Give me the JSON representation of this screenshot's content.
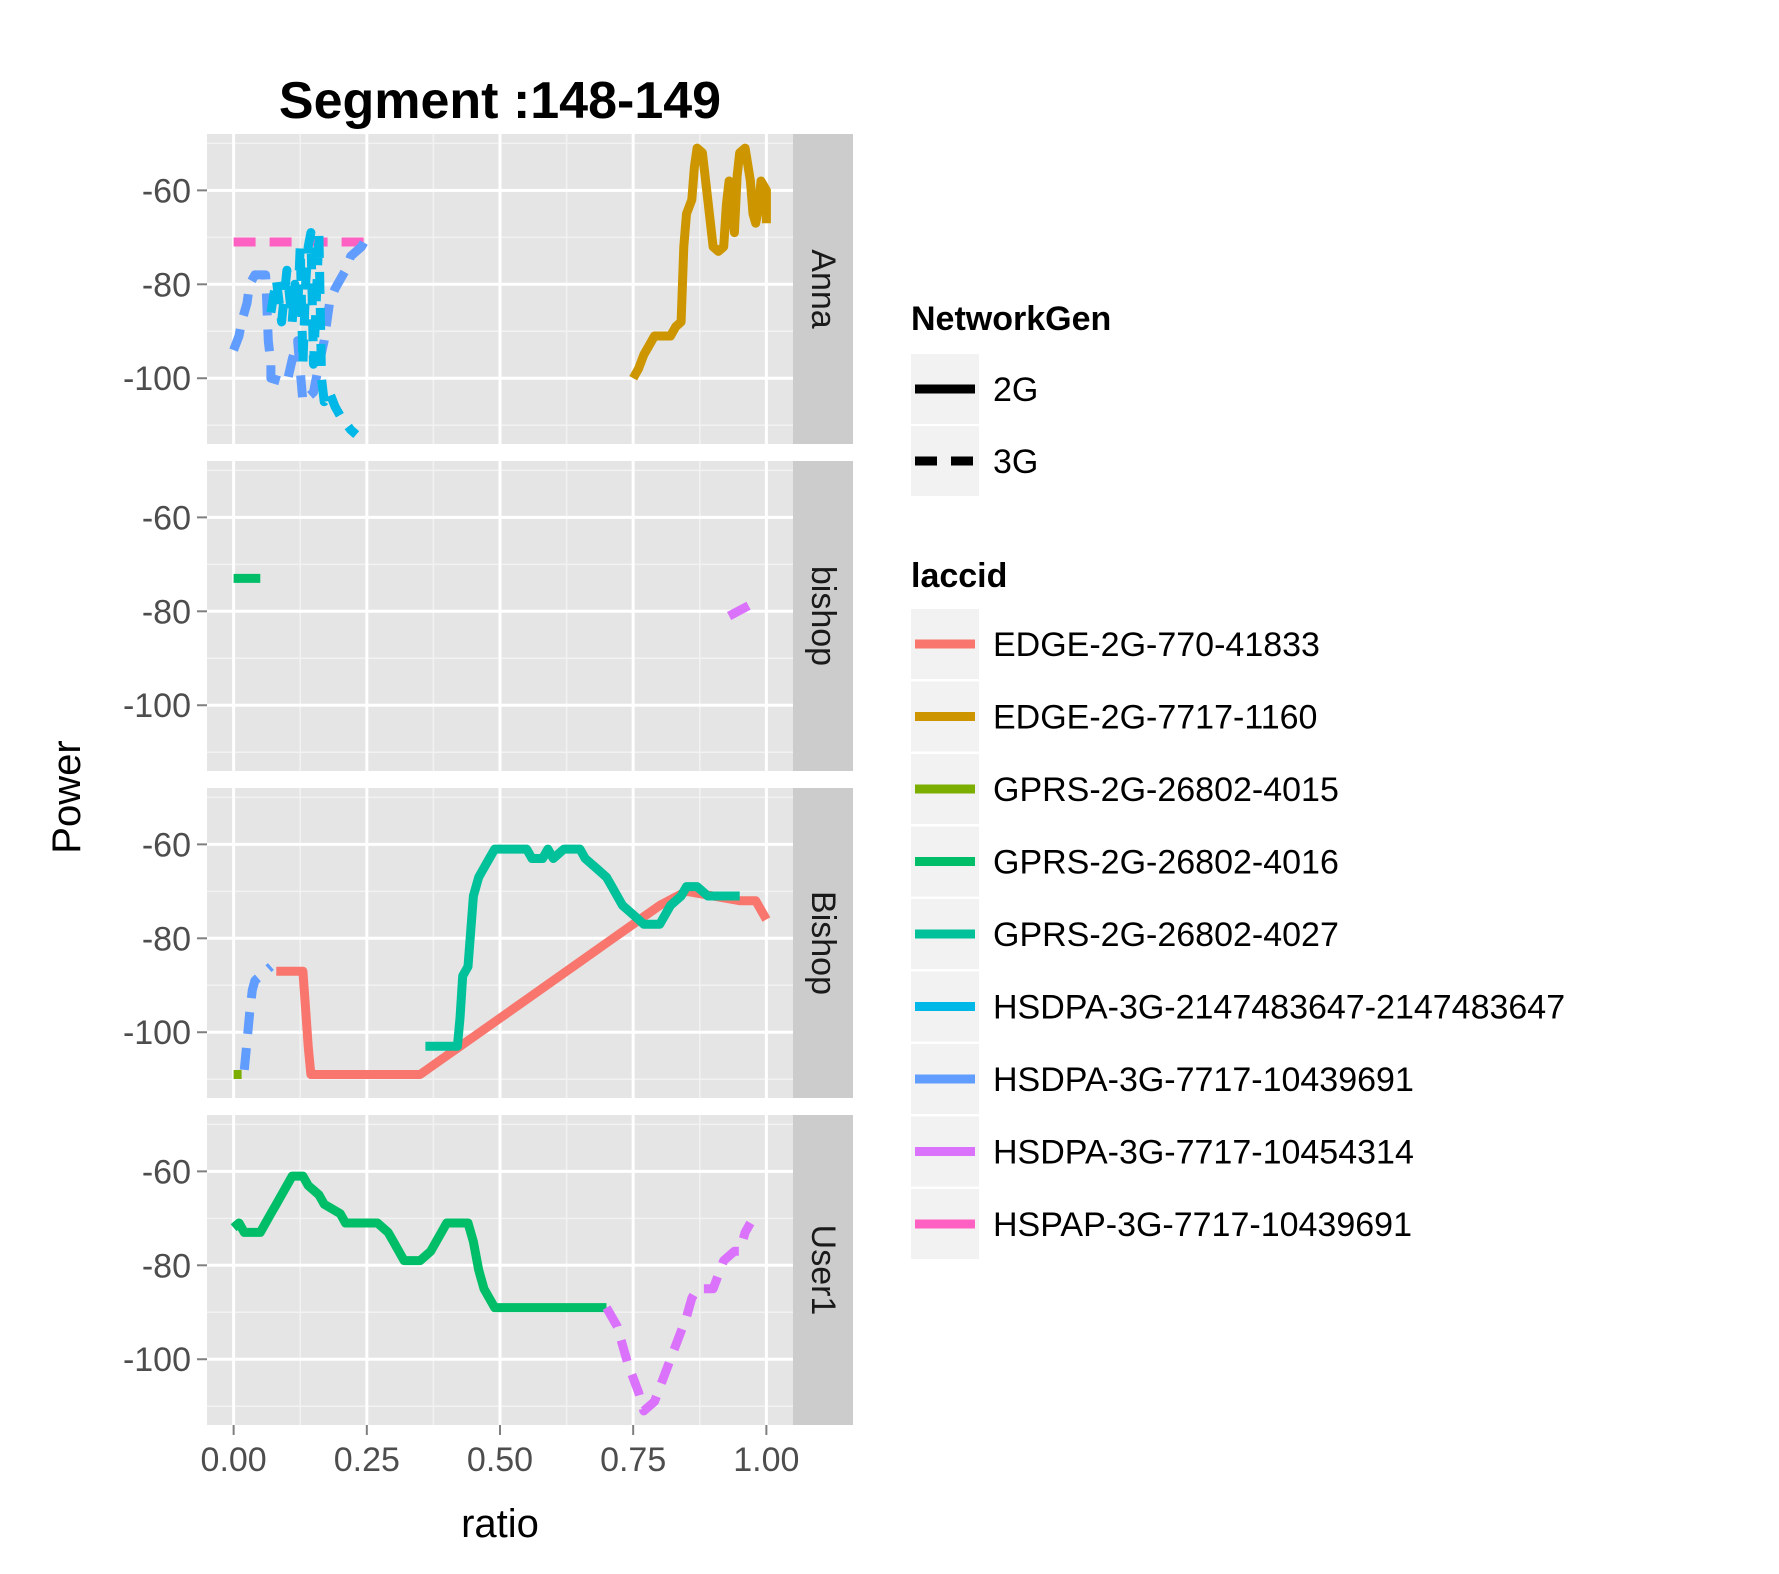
{
  "chart_data": {
    "type": "line",
    "title": "Segment :148-149",
    "xlabel": "ratio",
    "ylabel": "Power",
    "xlim": [
      -0.05,
      1.05
    ],
    "ylim": [
      -114,
      -48
    ],
    "x_ticks": [
      "0.00",
      "0.25",
      "0.50",
      "0.75",
      "1.00"
    ],
    "y_ticks": [
      "-60",
      "-80",
      "-100"
    ],
    "panels": [
      "Anna",
      "bishop",
      "Bishop",
      "User1"
    ],
    "legend_networkgen": {
      "title": "NetworkGen",
      "items": [
        {
          "label": "2G",
          "linetype": "solid"
        },
        {
          "label": "3G",
          "linetype": "dashed"
        }
      ]
    },
    "legend_laccid": {
      "title": "laccid",
      "items": [
        {
          "label": "EDGE-2G-770-41833",
          "color": "#F8766D"
        },
        {
          "label": "EDGE-2G-7717-1160",
          "color": "#CD9600"
        },
        {
          "label": "GPRS-2G-26802-4015",
          "color": "#7CAE00"
        },
        {
          "label": "GPRS-2G-26802-4016",
          "color": "#00BE67"
        },
        {
          "label": "GPRS-2G-26802-4027",
          "color": "#00C19A"
        },
        {
          "label": "HSDPA-3G-2147483647-2147483647",
          "color": "#00B8E7"
        },
        {
          "label": "HSDPA-3G-7717-10439691",
          "color": "#619CFF"
        },
        {
          "label": "HSDPA-3G-7717-10454314",
          "color": "#DB72FB"
        },
        {
          "label": "HSPAP-3G-7717-10439691",
          "color": "#FF61C3"
        }
      ]
    },
    "series": [
      {
        "panel": "Anna",
        "laccid": "EDGE-2G-7717-1160",
        "net": "2G",
        "color": "#CD9600",
        "points": [
          [
            0.75,
            -100
          ],
          [
            0.76,
            -98
          ],
          [
            0.77,
            -95
          ],
          [
            0.78,
            -93
          ],
          [
            0.79,
            -91
          ],
          [
            0.82,
            -91
          ],
          [
            0.83,
            -89
          ],
          [
            0.84,
            -88
          ],
          [
            0.845,
            -72
          ],
          [
            0.85,
            -65
          ],
          [
            0.86,
            -62
          ],
          [
            0.865,
            -55
          ],
          [
            0.87,
            -51
          ],
          [
            0.88,
            -52
          ],
          [
            0.89,
            -62
          ],
          [
            0.9,
            -72
          ],
          [
            0.91,
            -73
          ],
          [
            0.92,
            -72
          ],
          [
            0.925,
            -63
          ],
          [
            0.93,
            -58
          ],
          [
            0.94,
            -69
          ],
          [
            0.945,
            -57
          ],
          [
            0.95,
            -52
          ],
          [
            0.96,
            -51
          ],
          [
            0.97,
            -58
          ],
          [
            0.975,
            -65
          ],
          [
            0.98,
            -67
          ],
          [
            0.985,
            -64
          ],
          [
            0.99,
            -58
          ],
          [
            1.0,
            -60
          ],
          [
            1.0,
            -67
          ]
        ]
      },
      {
        "panel": "Anna",
        "laccid": "HSPAP-3G-7717-10439691",
        "net": "3G",
        "color": "#FF61C3",
        "points": [
          [
            0.0,
            -71
          ],
          [
            0.25,
            -71
          ]
        ]
      },
      {
        "panel": "Anna",
        "laccid": "HSDPA-3G-7717-10439691",
        "net": "3G",
        "color": "#619CFF",
        "points": [
          [
            0.0,
            -94
          ],
          [
            0.01,
            -91
          ],
          [
            0.015,
            -88
          ],
          [
            0.025,
            -84
          ],
          [
            0.03,
            -80
          ],
          [
            0.04,
            -78
          ],
          [
            0.06,
            -78
          ],
          [
            0.065,
            -92
          ],
          [
            0.07,
            -97
          ],
          [
            0.07,
            -100
          ],
          [
            0.1,
            -101
          ],
          [
            0.11,
            -96
          ],
          [
            0.12,
            -92
          ],
          [
            0.13,
            -105
          ],
          [
            0.15,
            -103
          ],
          [
            0.16,
            -97
          ],
          [
            0.17,
            -92
          ],
          [
            0.18,
            -84
          ],
          [
            0.19,
            -81
          ],
          [
            0.2,
            -79
          ],
          [
            0.21,
            -77
          ],
          [
            0.22,
            -74
          ],
          [
            0.24,
            -72
          ],
          [
            0.25,
            -70
          ]
        ]
      },
      {
        "panel": "Anna",
        "laccid": "HSDPA-3G-2147483647-2147483647",
        "net": "3G",
        "color": "#00B8E7",
        "points": [
          [
            0.07,
            -86
          ],
          [
            0.08,
            -79
          ],
          [
            0.09,
            -88
          ],
          [
            0.1,
            -77
          ],
          [
            0.11,
            -88
          ],
          [
            0.115,
            -80
          ],
          [
            0.12,
            -86
          ],
          [
            0.125,
            -72
          ],
          [
            0.13,
            -97
          ],
          [
            0.135,
            -80
          ],
          [
            0.14,
            -72
          ],
          [
            0.145,
            -69
          ],
          [
            0.15,
            -97
          ],
          [
            0.155,
            -84
          ],
          [
            0.16,
            -69
          ],
          [
            0.165,
            -100
          ],
          [
            0.17,
            -105
          ],
          [
            0.18,
            -103
          ],
          [
            0.19,
            -106
          ],
          [
            0.2,
            -108
          ],
          [
            0.22,
            -111
          ],
          [
            0.23,
            -112
          ]
        ]
      },
      {
        "panel": "bishop",
        "laccid": "GPRS-2G-26802-4016",
        "net": "2G",
        "color": "#00BE67",
        "points": [
          [
            0.0,
            -73
          ],
          [
            0.05,
            -73
          ]
        ]
      },
      {
        "panel": "bishop",
        "laccid": "HSDPA-3G-7717-10454314",
        "net": "3G",
        "color": "#DB72FB",
        "points": [
          [
            0.93,
            -81
          ],
          [
            0.98,
            -78
          ]
        ]
      },
      {
        "panel": "Bishop",
        "laccid": "EDGE-2G-770-41833",
        "net": "2G",
        "color": "#F8766D",
        "points": [
          [
            0.08,
            -87
          ],
          [
            0.13,
            -87
          ],
          [
            0.135,
            -95
          ],
          [
            0.14,
            -103
          ],
          [
            0.145,
            -109
          ],
          [
            0.16,
            -109
          ],
          [
            0.35,
            -109
          ],
          [
            0.4,
            -105
          ],
          [
            0.45,
            -101
          ],
          [
            0.5,
            -97
          ],
          [
            0.55,
            -93
          ],
          [
            0.6,
            -89
          ],
          [
            0.65,
            -85
          ],
          [
            0.7,
            -81
          ],
          [
            0.75,
            -77
          ],
          [
            0.8,
            -73
          ],
          [
            0.85,
            -70
          ],
          [
            0.95,
            -72
          ],
          [
            0.98,
            -72
          ],
          [
            0.99,
            -74
          ],
          [
            1.0,
            -76
          ]
        ]
      },
      {
        "panel": "Bishop",
        "laccid": "GPRS-2G-26802-4027",
        "net": "2G",
        "color": "#00C19A",
        "points": [
          [
            0.36,
            -103
          ],
          [
            0.42,
            -103
          ],
          [
            0.425,
            -97
          ],
          [
            0.43,
            -88
          ],
          [
            0.44,
            -86
          ],
          [
            0.45,
            -71
          ],
          [
            0.46,
            -67
          ],
          [
            0.47,
            -65
          ],
          [
            0.48,
            -63
          ],
          [
            0.49,
            -61
          ],
          [
            0.55,
            -61
          ],
          [
            0.56,
            -63
          ],
          [
            0.58,
            -63
          ],
          [
            0.59,
            -61
          ],
          [
            0.6,
            -63
          ],
          [
            0.62,
            -61
          ],
          [
            0.65,
            -61
          ],
          [
            0.66,
            -63
          ],
          [
            0.68,
            -65
          ],
          [
            0.7,
            -67
          ],
          [
            0.71,
            -69
          ],
          [
            0.73,
            -73
          ],
          [
            0.75,
            -75
          ],
          [
            0.77,
            -77
          ],
          [
            0.8,
            -77
          ],
          [
            0.82,
            -73
          ],
          [
            0.84,
            -71
          ],
          [
            0.85,
            -69
          ],
          [
            0.87,
            -69
          ],
          [
            0.89,
            -71
          ],
          [
            0.95,
            -71
          ]
        ]
      },
      {
        "panel": "Bishop",
        "laccid": "HSDPA-3G-7717-10439691",
        "net": "3G",
        "color": "#619CFF",
        "points": [
          [
            0.02,
            -108
          ],
          [
            0.025,
            -102
          ],
          [
            0.03,
            -96
          ],
          [
            0.035,
            -91
          ],
          [
            0.04,
            -89
          ],
          [
            0.05,
            -88
          ],
          [
            0.07,
            -86
          ]
        ]
      },
      {
        "panel": "Bishop",
        "laccid": "GPRS-2G-26802-4015",
        "net": "2G",
        "color": "#7CAE00",
        "points": [
          [
            0.0,
            -109
          ],
          [
            0.015,
            -109
          ]
        ]
      },
      {
        "panel": "User1",
        "laccid": "GPRS-2G-26802-4016",
        "net": "2G",
        "color": "#00BE67",
        "points": [
          [
            0.0,
            -72
          ],
          [
            0.01,
            -71
          ],
          [
            0.02,
            -73
          ],
          [
            0.05,
            -73
          ],
          [
            0.06,
            -71
          ],
          [
            0.07,
            -69
          ],
          [
            0.08,
            -67
          ],
          [
            0.09,
            -65
          ],
          [
            0.1,
            -63
          ],
          [
            0.11,
            -61
          ],
          [
            0.13,
            -61
          ],
          [
            0.14,
            -63
          ],
          [
            0.16,
            -65
          ],
          [
            0.17,
            -67
          ],
          [
            0.2,
            -69
          ],
          [
            0.21,
            -71
          ],
          [
            0.27,
            -71
          ],
          [
            0.29,
            -73
          ],
          [
            0.3,
            -75
          ],
          [
            0.31,
            -77
          ],
          [
            0.32,
            -79
          ],
          [
            0.35,
            -79
          ],
          [
            0.37,
            -77
          ],
          [
            0.38,
            -75
          ],
          [
            0.39,
            -73
          ],
          [
            0.4,
            -71
          ],
          [
            0.44,
            -71
          ],
          [
            0.45,
            -75
          ],
          [
            0.46,
            -81
          ],
          [
            0.47,
            -85
          ],
          [
            0.48,
            -87
          ],
          [
            0.49,
            -89
          ],
          [
            0.7,
            -89
          ]
        ]
      },
      {
        "panel": "User1",
        "laccid": "HSDPA-3G-7717-10454314",
        "net": "3G",
        "color": "#DB72FB",
        "points": [
          [
            0.7,
            -89
          ],
          [
            0.72,
            -93
          ],
          [
            0.74,
            -101
          ],
          [
            0.76,
            -107
          ],
          [
            0.77,
            -111
          ],
          [
            0.79,
            -109
          ],
          [
            0.81,
            -103
          ],
          [
            0.83,
            -97
          ],
          [
            0.85,
            -91
          ],
          [
            0.86,
            -87
          ],
          [
            0.87,
            -85
          ],
          [
            0.9,
            -85
          ],
          [
            0.92,
            -79
          ],
          [
            0.94,
            -77
          ],
          [
            0.95,
            -77
          ],
          [
            0.96,
            -73
          ],
          [
            0.97,
            -71
          ]
        ]
      }
    ]
  }
}
